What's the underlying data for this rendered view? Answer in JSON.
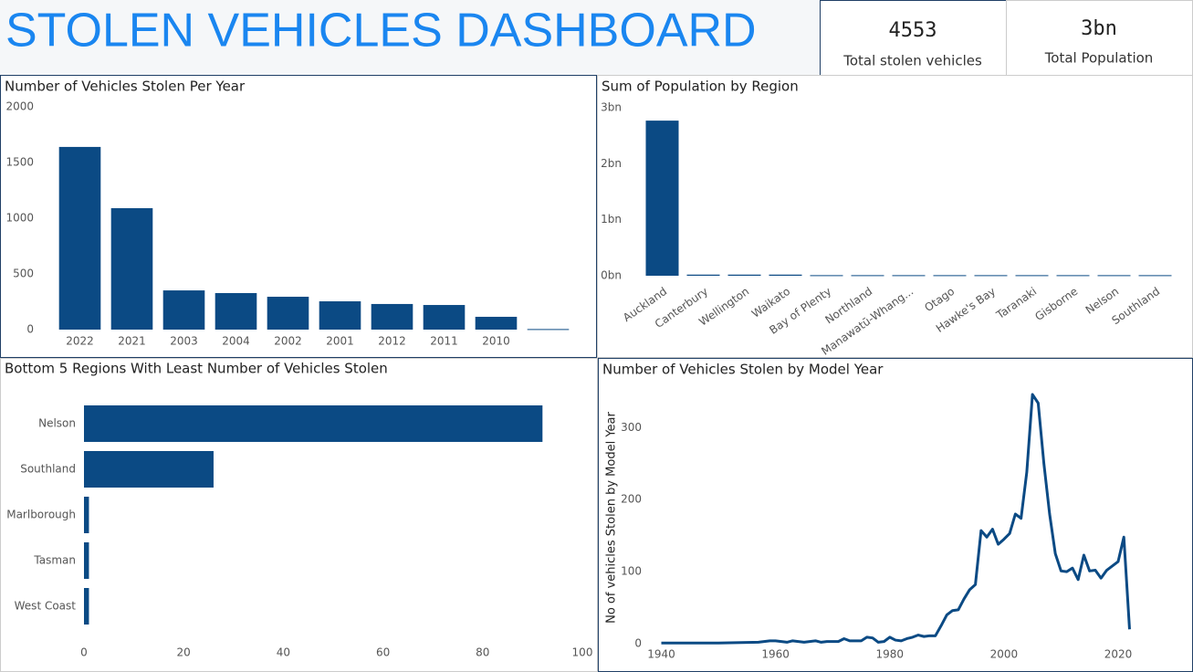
{
  "header": {
    "title": "STOLEN VEHICLES DASHBOARD"
  },
  "kpis": [
    {
      "value": "4553",
      "label": "Total stolen vehicles"
    },
    {
      "value": "3bn",
      "label": "Total Population"
    }
  ],
  "chart_data": [
    {
      "type": "bar",
      "title": "Number of Vehicles Stolen Per Year",
      "color": "#0b4a84",
      "categories": [
        "2022",
        "2021",
        "2003",
        "2004",
        "2002",
        "2001",
        "2012",
        "2011",
        "2010",
        null
      ],
      "values": [
        1640,
        1090,
        352,
        328,
        295,
        254,
        230,
        221,
        115,
        5
      ],
      "ylim": [
        0,
        2000
      ],
      "yticks": [
        0,
        500,
        1000,
        1500,
        2000
      ]
    },
    {
      "type": "bar",
      "title": "Sum of Population by Region",
      "color": "#0b4a84",
      "categories": [
        "Auckland",
        "Canterbury",
        "Wellington",
        "Waikato",
        "Bay of Plenty",
        "Northland",
        "Manawatū-Whang...",
        "Otago",
        "Hawke's Bay",
        "Taranaki",
        "Gisborne",
        "Nelson",
        "Southland"
      ],
      "values": [
        2.77,
        0.02,
        0.02,
        0.02,
        0.01,
        0.01,
        0.01,
        0.01,
        0.01,
        0.01,
        0.01,
        0.01,
        0.01
      ],
      "ylim": [
        0,
        3
      ],
      "yticks": [
        {
          "value": 0,
          "label": "0bn"
        },
        {
          "value": 1,
          "label": "1bn"
        },
        {
          "value": 2,
          "label": "2bn"
        },
        {
          "value": 3,
          "label": "3bn"
        }
      ]
    },
    {
      "type": "bar",
      "orientation": "horizontal",
      "title": "Bottom 5 Regions With Least Number of Vehicles Stolen",
      "color": "#0b4a84",
      "categories": [
        "Nelson",
        "Southland",
        "Marlborough",
        "Tasman",
        "West Coast"
      ],
      "values": [
        92,
        26,
        1,
        1,
        1
      ],
      "xlim": [
        0,
        100
      ],
      "xticks": [
        0,
        20,
        40,
        60,
        80,
        100
      ]
    },
    {
      "type": "line",
      "title": "Number of Vehicles Stolen by Model Year",
      "y_label": "No of vehicles Stolen by Model Year",
      "color": "#0b4a84",
      "x": [
        1940,
        1950,
        1957,
        1958,
        1959,
        1960,
        1961,
        1962,
        1963,
        1964,
        1965,
        1966,
        1967,
        1968,
        1969,
        1970,
        1971,
        1972,
        1973,
        1974,
        1975,
        1976,
        1977,
        1978,
        1979,
        1980,
        1981,
        1982,
        1983,
        1984,
        1985,
        1986,
        1987,
        1988,
        1989,
        1990,
        1991,
        1992,
        1993,
        1994,
        1995,
        1996,
        1997,
        1998,
        1999,
        2000,
        2001,
        2002,
        2003,
        2004,
        2005,
        2006,
        2007,
        2008,
        2009,
        2010,
        2011,
        2012,
        2013,
        2014,
        2015,
        2016,
        2017,
        2018,
        2019,
        2020,
        2021,
        2022
      ],
      "values": [
        1,
        1,
        2,
        3,
        4,
        4,
        3,
        2,
        4,
        3,
        2,
        3,
        4,
        2,
        3,
        3,
        3,
        7,
        4,
        4,
        4,
        9,
        8,
        2,
        3,
        9,
        5,
        4,
        7,
        9,
        12,
        10,
        11,
        11,
        25,
        40,
        46,
        47,
        62,
        75,
        82,
        157,
        148,
        159,
        138,
        145,
        153,
        180,
        174,
        238,
        346,
        334,
        250,
        180,
        125,
        101,
        100,
        105,
        89,
        123,
        101,
        102,
        91,
        102,
        108,
        114,
        148,
        20
      ],
      "xlim": [
        1938,
        2024
      ],
      "xticks": [
        1940,
        1960,
        1980,
        2000,
        2020
      ],
      "ylim": [
        0,
        360
      ],
      "yticks": [
        0,
        100,
        200,
        300
      ]
    }
  ]
}
